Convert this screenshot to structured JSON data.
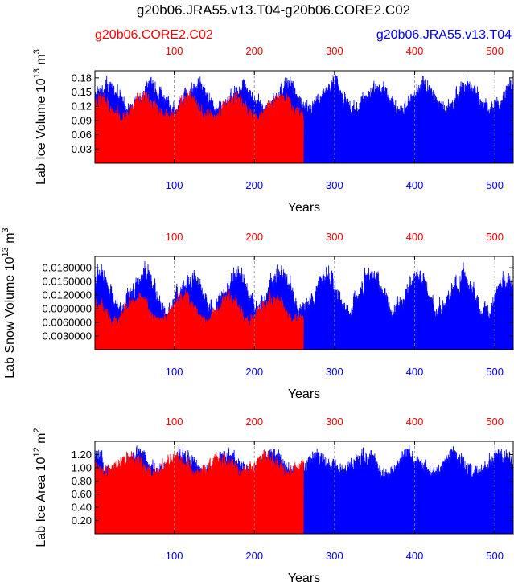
{
  "title": "g20b06.JRA55.v13.T04-g20b06.CORE2.C02",
  "legend": {
    "left": {
      "text": "g20b06.CORE2.C02",
      "color": "#ff0000"
    },
    "right": {
      "text": "g20b06.JRA55.v13.T04",
      "color": "#0000ff"
    }
  },
  "colors": {
    "core2": "#ff0000",
    "jra55": "#0000ff",
    "gridline": "#888888"
  },
  "chart_data": [
    {
      "type": "line",
      "id": "ice-volume",
      "ylabel": "Lab Ice Volume 10",
      "ylabel_sup": "13",
      "ylabel_unit": "m",
      "ylabel_unit_sup": "3",
      "xlabel": "Years",
      "xlim": [
        1,
        523
      ],
      "ylim": [
        0.0,
        0.195
      ],
      "xticks": [
        100,
        200,
        300,
        400,
        500
      ],
      "xtick_labels": [
        "100",
        "200",
        "300",
        "400",
        "500"
      ],
      "yticks": [
        0.03,
        0.06,
        0.09,
        0.12,
        0.15,
        0.18
      ],
      "ytick_labels": [
        "0.03",
        "0.06",
        "0.09",
        "0.12",
        "0.15",
        "0.18"
      ],
      "series": [
        {
          "name": "g20b06.JRA55.v13.T04",
          "x_range": [
            1,
            523
          ],
          "seasonal_min": 0.0,
          "seasonal_max_range": [
            0.115,
            0.19
          ]
        },
        {
          "name": "g20b06.CORE2.C02",
          "x_range": [
            1,
            261
          ],
          "seasonal_min": 0.0,
          "seasonal_max_range": [
            0.1,
            0.155
          ]
        }
      ]
    },
    {
      "type": "line",
      "id": "snow-volume",
      "ylabel": "Lab Snow Volume 10",
      "ylabel_sup": "13",
      "ylabel_unit": "m",
      "ylabel_unit_sup": "3",
      "xlabel": "Years",
      "xlim": [
        1,
        523
      ],
      "ylim": [
        0.0,
        0.0205
      ],
      "xticks": [
        100,
        200,
        300,
        400,
        500
      ],
      "xtick_labels": [
        "100",
        "200",
        "300",
        "400",
        "500"
      ],
      "yticks": [
        0.003,
        0.006,
        0.009,
        0.012,
        0.015,
        0.018
      ],
      "ytick_labels": [
        "0.0030000",
        "0.0060000",
        "0.0090000",
        "0.0120000",
        "0.0150000",
        "0.0180000"
      ],
      "series": [
        {
          "name": "g20b06.JRA55.v13.T04",
          "x_range": [
            1,
            523
          ],
          "seasonal_min": 0.0,
          "seasonal_max_range": [
            0.008,
            0.0195
          ]
        },
        {
          "name": "g20b06.CORE2.C02",
          "x_range": [
            1,
            261
          ],
          "seasonal_min": 0.0,
          "seasonal_max_range": [
            0.006,
            0.0135
          ]
        }
      ]
    },
    {
      "type": "line",
      "id": "ice-area",
      "ylabel": "Lab Ice Area 10",
      "ylabel_sup": "12",
      "ylabel_unit": "m",
      "ylabel_unit_sup": "2",
      "xlabel": "Years",
      "xlim": [
        1,
        523
      ],
      "ylim": [
        0.0,
        1.4
      ],
      "xticks": [
        100,
        200,
        300,
        400,
        500
      ],
      "xtick_labels": [
        "100",
        "200",
        "300",
        "400",
        "500"
      ],
      "yticks": [
        0.2,
        0.4,
        0.6,
        0.8,
        1.0,
        1.2
      ],
      "ytick_labels": [
        "0.20",
        "0.40",
        "0.60",
        "0.80",
        "1.00",
        "1.20"
      ],
      "series": [
        {
          "name": "g20b06.JRA55.v13.T04",
          "x_range": [
            1,
            523
          ],
          "seasonal_min": 0.0,
          "seasonal_max_range": [
            0.95,
            1.35
          ]
        },
        {
          "name": "g20b06.CORE2.C02",
          "x_range": [
            1,
            261
          ],
          "seasonal_min": 0.0,
          "seasonal_max_range": [
            0.95,
            1.3
          ]
        }
      ]
    }
  ]
}
